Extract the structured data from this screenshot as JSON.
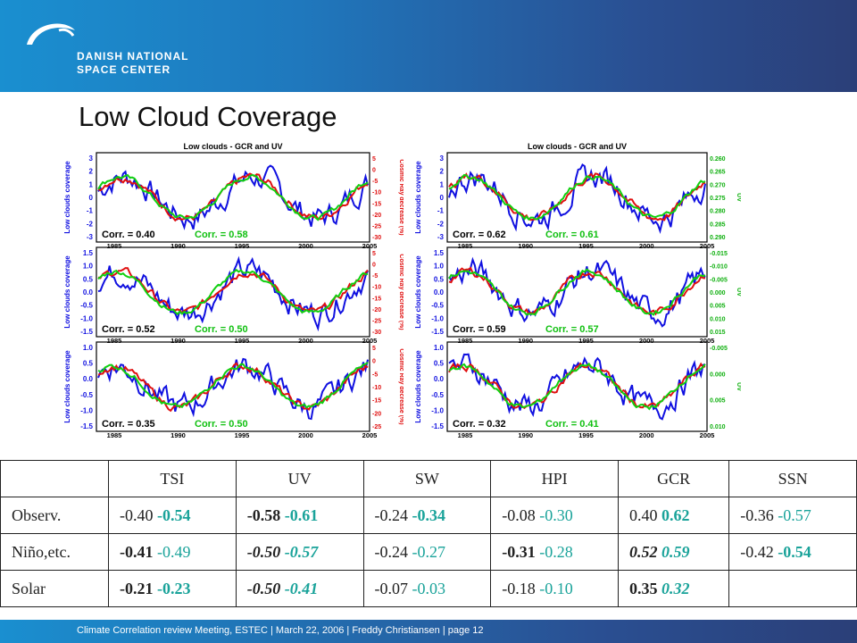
{
  "header": {
    "org_line1": "DANISH NATIONAL",
    "org_line2": "SPACE CENTER"
  },
  "title": "Low Cloud Coverage",
  "panels": [
    {
      "title": "Low clouds - GCR and UV",
      "ylabel": "Low clouds coverage",
      "rlabel_top": "Cosmic Ray decrease (%)",
      "rlabel_mid": "Cosmic Ray decrease (%)",
      "rlabel_bot": "Cosmic Ray decrease (%)",
      "rows": [
        {
          "left": "Corr. = 0.40",
          "right": "Corr. = 0.58",
          "yticks": [
            "3",
            "2",
            "1",
            "0",
            "-1",
            "-2",
            "-3"
          ],
          "rticks": [
            "5",
            "0",
            "-5",
            "-10",
            "-15",
            "-20",
            "-25",
            "-30"
          ]
        },
        {
          "left": "Corr. = 0.52",
          "right": "Corr. = 0.50",
          "yticks": [
            "1.5",
            "1.0",
            "0.5",
            "0.0",
            "-0.5",
            "-1.0",
            "-1.5"
          ],
          "rticks": [
            "5",
            "0",
            "-5",
            "-10",
            "-15",
            "-20",
            "-25",
            "-30"
          ]
        },
        {
          "left": "Corr. = 0.35",
          "right": "Corr. = 0.50",
          "yticks": [
            "1.0",
            "0.5",
            "0.0",
            "-0.5",
            "-1.0",
            "-1.5"
          ],
          "rticks": [
            "5",
            "0",
            "-5",
            "-10",
            "-15",
            "-20",
            "-25"
          ]
        }
      ],
      "xticks": [
        "1985",
        "1990",
        "1995",
        "2000",
        "2005"
      ]
    },
    {
      "title": "Low clouds - GCR and UV",
      "ylabel": "Low clouds coverage",
      "rlabel_top": "UV",
      "rlabel_mid": "UV",
      "rlabel_bot": "UV",
      "rows": [
        {
          "left": "Corr. = 0.62",
          "right": "Corr. = 0.61",
          "yticks": [
            "3",
            "2",
            "1",
            "0",
            "-1",
            "-2",
            "-3"
          ],
          "rticks": [
            "0.260",
            "0.265",
            "0.270",
            "0.275",
            "0.280",
            "0.285",
            "0.290"
          ]
        },
        {
          "left": "Corr. = 0.59",
          "right": "Corr. = 0.57",
          "yticks": [
            "1.5",
            "1.0",
            "0.5",
            "0.0",
            "-0.5",
            "-1.0",
            "-1.5"
          ],
          "rticks": [
            "-0.015",
            "-0.010",
            "-0.005",
            "0.000",
            "0.005",
            "0.010",
            "0.015"
          ]
        },
        {
          "left": "Corr. = 0.32",
          "right": "Corr. = 0.41",
          "yticks": [
            "1.0",
            "0.5",
            "0.0",
            "-0.5",
            "-1.0",
            "-1.5"
          ],
          "rticks": [
            "-0.005",
            "0.000",
            "0.005",
            "0.010"
          ]
        }
      ],
      "xticks": [
        "1985",
        "1990",
        "1995",
        "2000",
        "2005"
      ]
    }
  ],
  "table": {
    "headers": [
      "",
      "TSI",
      "UV",
      "SW",
      "HPI",
      "GCR",
      "SSN"
    ],
    "rows": [
      {
        "label": "Observ.",
        "cells": [
          [
            "-0.40",
            "-0.54"
          ],
          [
            "-0.58",
            "-0.61"
          ],
          [
            "-0.24",
            "-0.34"
          ],
          [
            "-0.08",
            "-0.30"
          ],
          [
            "0.40",
            "0.62"
          ],
          [
            "-0.36",
            "-0.57"
          ]
        ]
      },
      {
        "label": "Niño,etc.",
        "cells": [
          [
            "-0.41",
            "-0.49"
          ],
          [
            "-0.50",
            "-0.57"
          ],
          [
            "-0.24",
            "-0.27"
          ],
          [
            "-0.31",
            "-0.28"
          ],
          [
            "0.52",
            "0.59"
          ],
          [
            "-0.42",
            "-0.54"
          ]
        ]
      },
      {
        "label": "Solar",
        "cells": [
          [
            "-0.21",
            "-0.23"
          ],
          [
            "-0.50",
            "-0.41"
          ],
          [
            "-0.07",
            "-0.03"
          ],
          [
            "-0.18",
            "-0.10"
          ],
          [
            "0.35",
            "0.32"
          ],
          [
            "",
            ""
          ]
        ]
      }
    ]
  },
  "footer": "Climate Correlation review Meeting, ESTEC | March 22, 2006 | Freddy Christiansen  | page 12",
  "colors": {
    "obs": "#1010e0",
    "gcr": "#e01010",
    "uv": "#10d010",
    "accent": "#1aa39a"
  }
}
